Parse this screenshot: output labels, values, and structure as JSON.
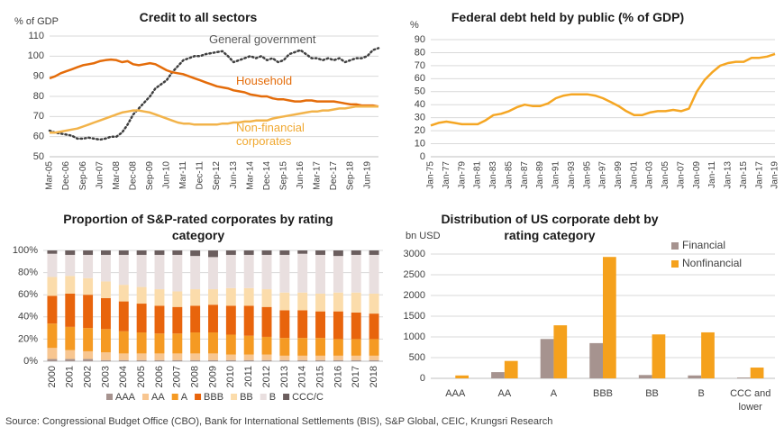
{
  "chart_data": [
    {
      "type": "line",
      "title": "Credit to all sectors",
      "y_label": "% of GDP",
      "categories": [
        "Mar-05",
        null,
        null,
        "Dec-06",
        null,
        null,
        "Sep-06",
        null,
        null,
        "Jun-07",
        null,
        null,
        "Mar-08",
        null,
        null,
        "Dec-08",
        null,
        null,
        "Sep-09",
        null,
        null,
        "Jun-10",
        null,
        null,
        "Mar-11",
        null,
        null,
        "Dec-11",
        null,
        null,
        "Sep-12",
        null,
        null,
        "Jun-13",
        null,
        null,
        "Mar-14",
        null,
        null,
        "Dec-14",
        null,
        null,
        "Sep-15",
        null,
        null,
        "Jun-16",
        null,
        null,
        "Mar-17",
        null,
        null,
        "Dec-17",
        null,
        null,
        "Sep-18",
        null,
        null,
        "Jun-19",
        null,
        null
      ],
      "series": [
        {
          "name": "General government",
          "color": "#404040",
          "dash": "dotted",
          "values": [
            63,
            62,
            61.5,
            61,
            60.5,
            59,
            59,
            59.5,
            59,
            58.5,
            59,
            60,
            60,
            62,
            66,
            71,
            74,
            77,
            80,
            84,
            86,
            88,
            92,
            95,
            98,
            99,
            100,
            100,
            101,
            101.5,
            102,
            102.5,
            100,
            97,
            98,
            99,
            100,
            99,
            100,
            98,
            99,
            97,
            98,
            101,
            102,
            103,
            101,
            99,
            99,
            98,
            99,
            98,
            99,
            97,
            98,
            99,
            99,
            100,
            103,
            104
          ]
        },
        {
          "name": "Household",
          "color": "#e46c0a",
          "values": [
            89,
            90,
            91.5,
            92.5,
            93.5,
            94.5,
            95.5,
            96,
            96.5,
            97.5,
            98,
            98.3,
            98,
            97,
            97.5,
            96,
            95.5,
            96,
            96.5,
            96,
            94.5,
            93,
            92,
            91.5,
            91,
            90,
            89,
            88,
            87,
            86,
            85,
            84.5,
            84,
            83,
            82.5,
            82,
            81,
            80.5,
            80,
            80,
            79,
            78.5,
            78.5,
            78,
            77.5,
            77.5,
            78,
            78,
            77.5,
            77.5,
            77.5,
            77.5,
            77,
            76.5,
            76,
            76,
            75.5,
            75.5,
            75.5,
            75
          ]
        },
        {
          "name": "Non-financial corporates",
          "color": "#f2b34a",
          "values": [
            62,
            62,
            62.5,
            63,
            63.5,
            64,
            65,
            66,
            67,
            68,
            69,
            70,
            71,
            72,
            72.5,
            73,
            73,
            72.5,
            72,
            71,
            70,
            69,
            68,
            67,
            66.5,
            66.5,
            66,
            66,
            66,
            66,
            66,
            66.5,
            66.5,
            67,
            67,
            67.5,
            67.5,
            68,
            68,
            68,
            69,
            69.5,
            70,
            70.5,
            71,
            71.5,
            72,
            72.5,
            72.5,
            73,
            73,
            73.5,
            74,
            74,
            74.5,
            75,
            75,
            75,
            75,
            75
          ]
        }
      ],
      "ylim": [
        50,
        110
      ],
      "yticks": [
        50,
        60,
        70,
        80,
        90,
        100,
        110
      ],
      "grid": true
    },
    {
      "type": "line",
      "title": "Federal debt held by public (% of GDP)",
      "y_label": "%",
      "categories": [
        "Jan-75",
        null,
        "Jan-77",
        null,
        "Jan-79",
        null,
        "Jan-81",
        null,
        "Jan-83",
        null,
        "Jan-85",
        null,
        "Jan-87",
        null,
        "Jan-89",
        null,
        "Jan-91",
        null,
        "Jan-93",
        null,
        "Jan-95",
        null,
        "Jan-97",
        null,
        "Jan-99",
        null,
        "Jan-01",
        null,
        "Jan-03",
        null,
        "Jan-05",
        null,
        "Jan-07",
        null,
        "Jan-09",
        null,
        "Jan-11",
        null,
        "Jan-13",
        null,
        "Jan-15",
        null,
        "Jan-17",
        null,
        "Jan-19"
      ],
      "series": [
        {
          "name": "Federal debt held by public",
          "color": "#f5a623",
          "values": [
            24,
            26,
            27,
            26,
            25,
            25,
            25,
            28,
            32,
            33,
            35,
            38,
            40,
            39,
            39,
            41,
            45,
            47,
            48,
            48,
            48,
            47,
            45,
            42,
            39,
            35,
            32,
            32,
            34,
            35,
            35,
            36,
            35,
            37,
            50,
            59,
            65,
            70,
            72,
            73,
            73,
            76,
            76,
            77,
            79
          ]
        }
      ],
      "ylim": [
        0,
        90
      ],
      "yticks": [
        0,
        10,
        20,
        30,
        40,
        50,
        60,
        70,
        80,
        90
      ],
      "grid": true
    },
    {
      "type": "stacked_bar",
      "title": "Proportion of S&P-rated corporates by rating category",
      "categories": [
        "2000",
        "2001",
        "2002",
        "2003",
        "2004",
        "2005",
        "2006",
        "2007",
        "2008",
        "2009",
        "2010",
        "2011",
        "2012",
        "2013",
        "2014",
        "2015",
        "2016",
        "2017",
        "2018"
      ],
      "series": [
        {
          "name": "AAA",
          "color": "#a6938f",
          "values": [
            2,
            2,
            2,
            1,
            1,
            1,
            1,
            1,
            1,
            1,
            1,
            1,
            1,
            1,
            1,
            1,
            1,
            1,
            1
          ]
        },
        {
          "name": "AA",
          "color": "#f8c690",
          "values": [
            10,
            8,
            7,
            7,
            6,
            6,
            6,
            6,
            6,
            6,
            5,
            5,
            5,
            4,
            4,
            4,
            4,
            4,
            4
          ]
        },
        {
          "name": "A",
          "color": "#f59a23",
          "values": [
            22,
            21,
            21,
            21,
            20,
            19,
            18,
            18,
            19,
            19,
            18,
            17,
            16,
            16,
            16,
            16,
            15,
            15,
            15
          ]
        },
        {
          "name": "BBB",
          "color": "#e8640c",
          "values": [
            25,
            30,
            30,
            28,
            27,
            26,
            25,
            24,
            24,
            25,
            26,
            27,
            27,
            25,
            25,
            24,
            25,
            24,
            23
          ]
        },
        {
          "name": "BB",
          "color": "#fbdcab",
          "values": [
            17,
            16,
            15,
            15,
            15,
            15,
            15,
            14,
            15,
            14,
            16,
            16,
            16,
            16,
            16,
            16,
            17,
            18,
            18
          ]
        },
        {
          "name": "B",
          "color": "#e9dfdf",
          "values": [
            21,
            19,
            21,
            24,
            27,
            29,
            31,
            33,
            30,
            29,
            30,
            30,
            31,
            34,
            35,
            35,
            33,
            34,
            35
          ]
        },
        {
          "name": "CCC/C",
          "color": "#6b5e5e",
          "values": [
            3,
            4,
            4,
            4,
            4,
            4,
            4,
            4,
            5,
            6,
            4,
            4,
            4,
            4,
            3,
            4,
            5,
            4,
            4
          ]
        }
      ],
      "ylim": [
        0,
        100
      ],
      "yticks": [
        {
          "value": 0,
          "label": "0%"
        },
        {
          "value": 20,
          "label": "20%"
        },
        {
          "value": 40,
          "label": "40%"
        },
        {
          "value": 60,
          "label": "60%"
        },
        {
          "value": 80,
          "label": "80%"
        },
        {
          "value": 100,
          "label": "100%"
        }
      ],
      "grid": true,
      "legend": "bottom"
    },
    {
      "type": "grouped_bar",
      "title": "Distribution of US corporate debt by rating category",
      "y_label": "bn USD",
      "categories": [
        "AAA",
        "AA",
        "A",
        "BBB",
        "BB",
        "B",
        "CCC and lower"
      ],
      "series": [
        {
          "name": "Financial",
          "color": "#a6938f",
          "values": [
            0,
            150,
            950,
            850,
            80,
            70,
            20
          ]
        },
        {
          "name": "Nonfinancial",
          "color": "#f5a11c",
          "values": [
            70,
            420,
            1280,
            2930,
            1060,
            1110,
            260
          ]
        }
      ],
      "ylim": [
        0,
        3000
      ],
      "yticks": [
        0,
        500,
        1000,
        1500,
        2000,
        2500,
        3000
      ],
      "grid": true,
      "legend": "top-right"
    }
  ],
  "source": "Source: Congressional Budget Office (CBO), Bank for International Settlements (BIS), S&P Global, CEIC, Krungsri Research"
}
